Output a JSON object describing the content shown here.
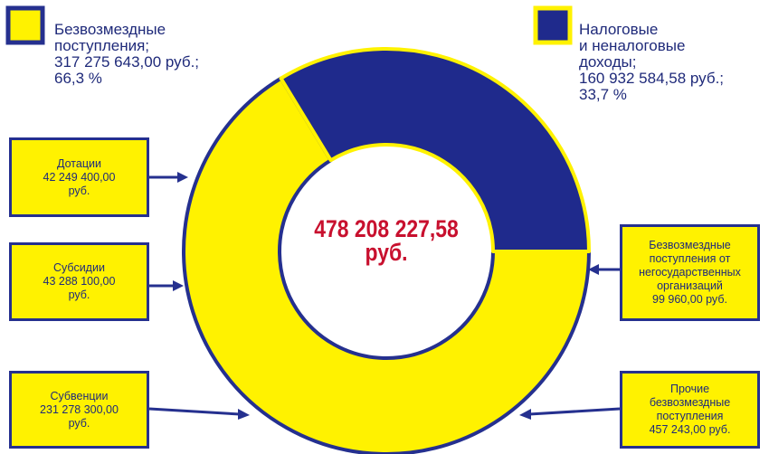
{
  "chart_data": {
    "type": "donut",
    "categories": [
      "Безвозмездные\nпоступления;",
      "Налоговые\nи неналоговые\nдоходы;"
    ],
    "values": [
      66.3,
      33.7
    ],
    "value_labels": [
      "66,3 %",
      "33,7 %"
    ],
    "amount_labels": [
      "317 275 643,00 руб.;",
      "160 932 584,58 руб.;"
    ],
    "colors": [
      "#fff200",
      "#1f2a8c"
    ],
    "center_label": {
      "amount": "478 208 227,58",
      "unit": "руб."
    },
    "breakdown": [
      {
        "label": "Дотации",
        "amount": "42 249 400,00\nруб."
      },
      {
        "label": "Субсидии",
        "amount": "43 288 100,00\nруб."
      },
      {
        "label": "Субвенции",
        "amount": "231 278 300,00\nруб."
      },
      {
        "label": "Безвозмездные\nпоступления от\nнегосударственных\nорганизаций",
        "amount": "99 960,00 руб."
      },
      {
        "label": "Прочие\nбезвозмездные\nпоступления",
        "amount": "457 243,00 руб."
      }
    ]
  }
}
